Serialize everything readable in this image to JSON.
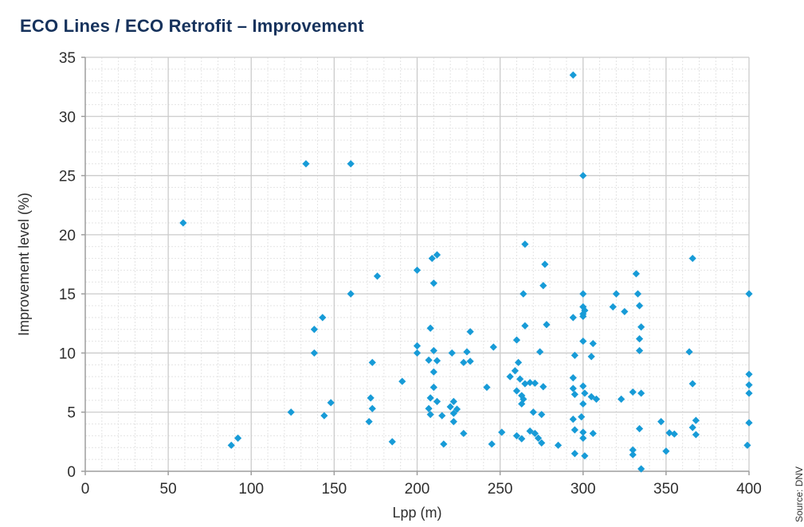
{
  "title": "ECO Lines / ECO Retrofit – Improvement",
  "source": "Source: DNV",
  "chart_data": {
    "type": "scatter",
    "title": "ECO Lines / ECO Retrofit – Improvement",
    "xlabel": "Lpp (m)",
    "ylabel": "Improvement level (%)",
    "xlim": [
      0,
      400
    ],
    "ylim": [
      0,
      35
    ],
    "xticks": [
      0,
      50,
      100,
      150,
      200,
      250,
      300,
      350,
      400
    ],
    "yticks": [
      0,
      5,
      10,
      15,
      20,
      25,
      30,
      35
    ],
    "grid": {
      "major_x_step": 50,
      "major_y_step": 5,
      "minor_x_step": 10,
      "minor_y_step": 1,
      "major_color": "#cbcbcb",
      "minor_color": "#e4e4e4",
      "axis_color": "#9e9e9e"
    },
    "legend": "none",
    "marker": "diamond",
    "marker_color": "#179bd7",
    "points": [
      [
        59,
        21
      ],
      [
        133,
        26
      ],
      [
        160,
        26
      ],
      [
        294,
        33.5
      ],
      [
        300,
        25
      ],
      [
        265,
        19.2
      ],
      [
        366,
        18
      ],
      [
        209,
        18
      ],
      [
        212,
        18.3
      ],
      [
        200,
        17
      ],
      [
        277,
        17.5
      ],
      [
        176,
        16.5
      ],
      [
        332,
        16.7
      ],
      [
        276,
        15.7
      ],
      [
        210,
        15.9
      ],
      [
        160,
        15
      ],
      [
        264,
        15
      ],
      [
        300,
        15
      ],
      [
        320,
        15
      ],
      [
        333,
        15
      ],
      [
        400,
        15
      ],
      [
        318,
        13.9
      ],
      [
        334,
        14
      ],
      [
        325,
        13.5
      ],
      [
        143,
        13
      ],
      [
        294,
        13
      ],
      [
        300,
        13.9
      ],
      [
        301,
        13.6
      ],
      [
        300,
        13.3
      ],
      [
        300,
        13.1
      ],
      [
        138,
        12
      ],
      [
        208,
        12.1
      ],
      [
        232,
        11.8
      ],
      [
        265,
        12.3
      ],
      [
        278,
        12.4
      ],
      [
        335,
        12.2
      ],
      [
        260,
        11.1
      ],
      [
        300,
        11
      ],
      [
        306,
        10.8
      ],
      [
        334,
        11.2
      ],
      [
        138,
        10
      ],
      [
        200,
        10.6
      ],
      [
        200,
        10
      ],
      [
        210,
        10.2
      ],
      [
        221,
        10
      ],
      [
        230,
        10.1
      ],
      [
        246,
        10.5
      ],
      [
        274,
        10.1
      ],
      [
        295,
        9.8
      ],
      [
        305,
        9.7
      ],
      [
        364,
        10.1
      ],
      [
        334,
        10.2
      ],
      [
        173,
        9.2
      ],
      [
        207,
        9.4
      ],
      [
        212,
        9.35
      ],
      [
        228,
        9.2
      ],
      [
        232,
        9.3
      ],
      [
        261,
        9.2
      ],
      [
        210,
        8.4
      ],
      [
        259,
        8.5
      ],
      [
        256,
        8
      ],
      [
        262,
        7.8
      ],
      [
        294,
        7.9
      ],
      [
        400,
        8.2
      ],
      [
        191,
        7.6
      ],
      [
        265,
        7.4
      ],
      [
        268,
        7.5
      ],
      [
        271,
        7.45
      ],
      [
        276,
        7.15
      ],
      [
        242,
        7.1
      ],
      [
        210,
        7.1
      ],
      [
        294,
        7
      ],
      [
        366,
        7.4
      ],
      [
        400,
        7.3
      ],
      [
        300,
        7.2
      ],
      [
        260,
        6.8
      ],
      [
        172,
        6.2
      ],
      [
        208,
        6.2
      ],
      [
        212,
        5.9
      ],
      [
        222,
        5.9
      ],
      [
        263,
        6.4
      ],
      [
        264,
        6.1
      ],
      [
        295,
        6.5
      ],
      [
        301,
        6.6
      ],
      [
        305,
        6.3
      ],
      [
        308,
        6.1
      ],
      [
        323,
        6.1
      ],
      [
        330,
        6.7
      ],
      [
        335,
        6.6
      ],
      [
        400,
        6.6
      ],
      [
        148,
        5.8
      ],
      [
        220,
        5.45
      ],
      [
        224,
        5.25
      ],
      [
        207,
        5.3
      ],
      [
        208,
        4.8
      ],
      [
        173,
        5.3
      ],
      [
        124,
        5
      ],
      [
        300,
        5.7
      ],
      [
        263,
        5.7
      ],
      [
        270,
        5
      ],
      [
        275,
        4.8
      ],
      [
        144,
        4.7
      ],
      [
        171,
        4.2
      ],
      [
        215,
        4.7
      ],
      [
        222,
        4.9
      ],
      [
        222,
        4.2
      ],
      [
        294,
        4.4
      ],
      [
        299,
        4.6
      ],
      [
        347,
        4.2
      ],
      [
        368,
        4.3
      ],
      [
        400,
        4.1
      ],
      [
        251,
        3.3
      ],
      [
        228,
        3.2
      ],
      [
        334,
        3.6
      ],
      [
        366,
        3.7
      ],
      [
        368,
        3.1
      ],
      [
        352,
        3.25
      ],
      [
        355,
        3.15
      ],
      [
        295,
        3.5
      ],
      [
        300,
        3.3
      ],
      [
        300,
        2.8
      ],
      [
        306,
        3.2
      ],
      [
        260,
        3
      ],
      [
        263,
        2.75
      ],
      [
        268,
        3.4
      ],
      [
        271,
        3.2
      ],
      [
        273,
        2.8
      ],
      [
        275,
        2.4
      ],
      [
        88,
        2.2
      ],
      [
        92,
        2.8
      ],
      [
        185,
        2.5
      ],
      [
        216,
        2.3
      ],
      [
        245,
        2.3
      ],
      [
        285,
        2.2
      ],
      [
        399,
        2.2
      ],
      [
        350,
        1.7
      ],
      [
        330,
        1.8
      ],
      [
        330,
        1.4
      ],
      [
        295,
        1.5
      ],
      [
        301,
        1.3
      ],
      [
        335,
        0.2
      ]
    ]
  }
}
